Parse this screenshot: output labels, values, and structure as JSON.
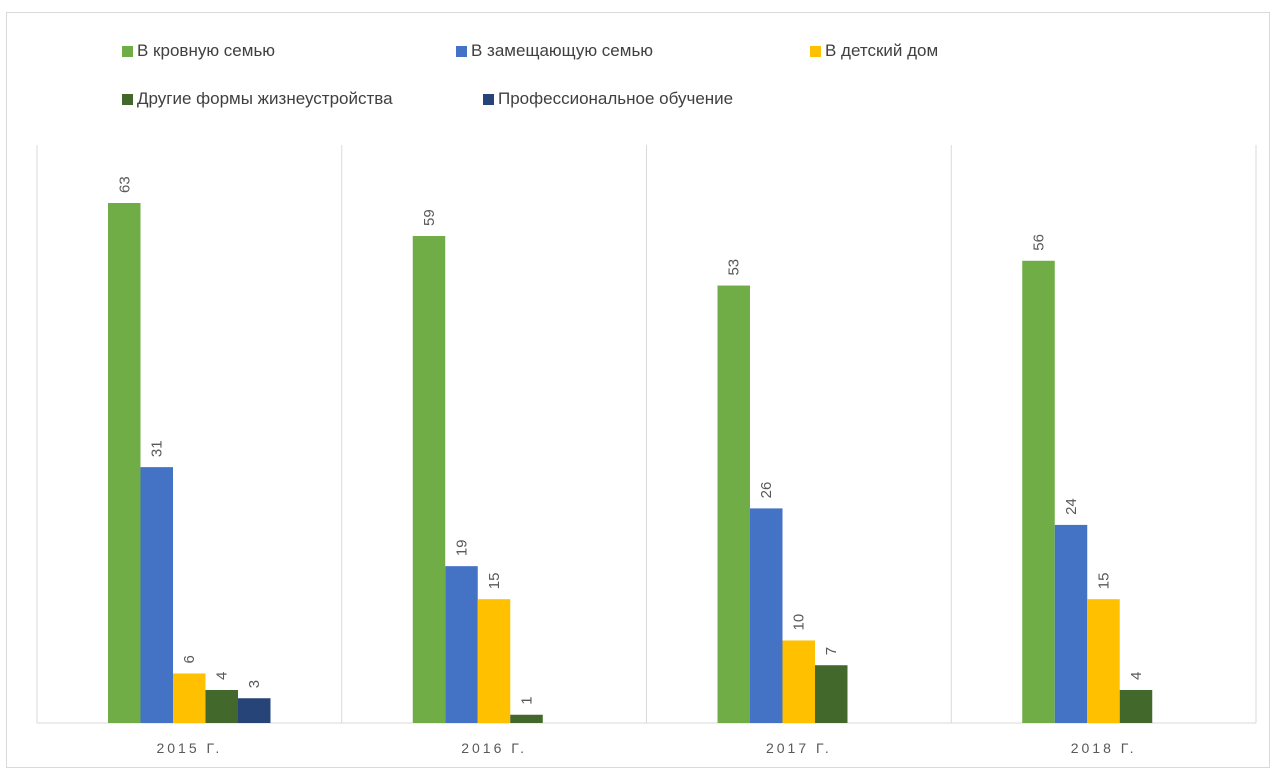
{
  "chart_data": {
    "type": "bar",
    "title": "",
    "xlabel": "",
    "ylabel": "",
    "ylim": [
      0,
      63
    ],
    "grid": "vertical category separators",
    "legend_position": "top",
    "categories": [
      "2015 Г.",
      "2016 Г.",
      "2017 Г.",
      "2018 Г."
    ],
    "series": [
      {
        "name": "В кровную семью",
        "color": "#70ad47",
        "values": [
          63,
          59,
          53,
          56
        ]
      },
      {
        "name": "В замещающую семью",
        "color": "#4472c4",
        "values": [
          31,
          19,
          26,
          24
        ]
      },
      {
        "name": "В детский дом",
        "color": "#ffc000",
        "values": [
          6,
          15,
          10,
          15
        ]
      },
      {
        "name": "Другие формы жизнеустройства",
        "color": "#43682b",
        "values": [
          4,
          1,
          7,
          4
        ]
      },
      {
        "name": "Профессиональное обучение",
        "color": "#264478",
        "values": [
          3,
          null,
          null,
          null
        ]
      }
    ]
  }
}
